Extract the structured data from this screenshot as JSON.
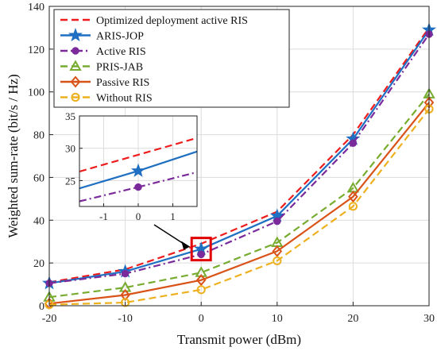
{
  "chart_data": {
    "type": "line",
    "xlabel": "Transmit power (dBm)",
    "ylabel": "Weighted sum-rate (bit/s / Hz)",
    "x": [
      -20,
      -10,
      0,
      10,
      20,
      30
    ],
    "xlim": [
      -20,
      30
    ],
    "ylim": [
      0,
      140
    ],
    "x_ticks": [
      "-20",
      "-10",
      "0",
      "10",
      "20",
      "30"
    ],
    "y_ticks": [
      "0",
      "20",
      "40",
      "60",
      "80",
      "100",
      "120",
      "140"
    ],
    "grid": true,
    "legend_position": "top-left",
    "series": [
      {
        "name": "Optimized deployment active RIS",
        "values": [
          11,
          17,
          29,
          44,
          80,
          130
        ],
        "color": "#ee1c1c",
        "dash": "dashed",
        "marker": "none"
      },
      {
        "name": "ARIS-JOP",
        "values": [
          10.5,
          16,
          26.5,
          42,
          78,
          129
        ],
        "color": "#1f6fc2",
        "dash": "solid",
        "marker": "star"
      },
      {
        "name": "Active RIS",
        "values": [
          10.5,
          15,
          24,
          39.5,
          76,
          127
        ],
        "color": "#7a2a9a",
        "dash": "dashdot",
        "marker": "circle"
      },
      {
        "name": "PRIS-JAB",
        "values": [
          4,
          8.5,
          15.5,
          29.5,
          55,
          99
        ],
        "color": "#77ac30",
        "dash": "dashed",
        "marker": "triangle"
      },
      {
        "name": "Passive RIS",
        "values": [
          1,
          5,
          12,
          25.5,
          51,
          95
        ],
        "color": "#d95319",
        "dash": "solid",
        "marker": "diamond"
      },
      {
        "name": "Without RIS",
        "values": [
          0.5,
          1.5,
          7.5,
          21,
          46.5,
          92
        ],
        "color": "#edb120",
        "dash": "dashed",
        "marker": "circle-open"
      }
    ],
    "inset": {
      "xlim": [
        -1.7,
        1.7
      ],
      "ylim": [
        21,
        35
      ],
      "x_ticks": [
        "-1",
        "0",
        "1"
      ],
      "y_ticks": [
        "25",
        "30",
        "35"
      ],
      "series": [
        {
          "name": "Optimized deployment active RIS",
          "x": [
            -1.7,
            0,
            1.7
          ],
          "values": [
            26.4,
            29,
            31.6
          ],
          "color": "#ee1c1c",
          "dash": "dashed",
          "marker": "none"
        },
        {
          "name": "ARIS-JOP",
          "x": [
            -1.7,
            0,
            1.7
          ],
          "values": [
            23.8,
            26.5,
            29.5
          ],
          "color": "#1f6fc2",
          "dash": "solid",
          "marker": "star"
        },
        {
          "name": "Active RIS",
          "x": [
            -1.7,
            0,
            1.7
          ],
          "values": [
            21.8,
            24,
            26.3
          ],
          "color": "#7a2a9a",
          "dash": "dashdot",
          "marker": "circle"
        }
      ]
    }
  }
}
